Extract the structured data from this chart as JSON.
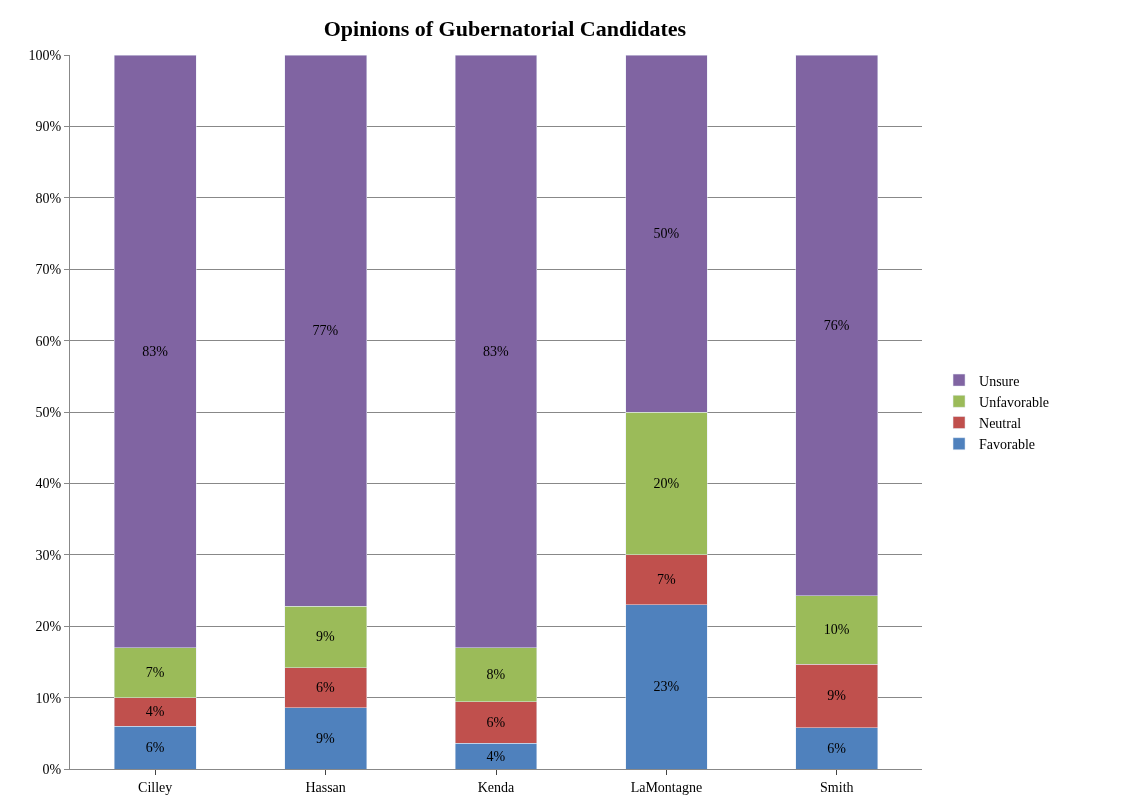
{
  "chart_data": {
    "type": "bar",
    "title": "Opinions of Gubernatorial Candidates",
    "categories": [
      "Cilley",
      "Hassan",
      "Kenda",
      "LaMontagne",
      "Smith"
    ],
    "stacked": true,
    "series": [
      {
        "name": "Favorable",
        "color": "#4f81bd",
        "values": [
          6,
          8.6,
          3.6,
          23,
          5.8
        ],
        "value_labels": [
          "6%",
          "9%",
          "4%",
          "23%",
          "6%"
        ]
      },
      {
        "name": "Neutral",
        "color": "#c0504d",
        "values": [
          4,
          5.6,
          5.8,
          7,
          8.9
        ],
        "value_labels": [
          "4%",
          "6%",
          "6%",
          "7%",
          "9%"
        ]
      },
      {
        "name": "Unfavorable",
        "color": "#9bbb59",
        "values": [
          7,
          8.6,
          7.6,
          20,
          9.6
        ],
        "value_labels": [
          "7%",
          "9%",
          "8%",
          "20%",
          "10%"
        ]
      },
      {
        "name": "Unsure",
        "color": "#8064a2",
        "values": [
          83,
          77.2,
          83,
          50,
          75.7
        ],
        "value_labels": [
          "83%",
          "77%",
          "83%",
          "50%",
          "76%"
        ]
      }
    ],
    "ylim": [
      0,
      100
    ],
    "yticks": [
      {
        "value": 0,
        "label": "0%"
      },
      {
        "value": 10,
        "label": "10%"
      },
      {
        "value": 20,
        "label": "20%"
      },
      {
        "value": 30,
        "label": "30%"
      },
      {
        "value": 40,
        "label": "40%"
      },
      {
        "value": 50,
        "label": "50%"
      },
      {
        "value": 60,
        "label": "60%"
      },
      {
        "value": 70,
        "label": "70%"
      },
      {
        "value": 80,
        "label": "80%"
      },
      {
        "value": 90,
        "label": "90%"
      },
      {
        "value": 100,
        "label": "100%"
      }
    ],
    "grid": "y",
    "legend": "right"
  }
}
